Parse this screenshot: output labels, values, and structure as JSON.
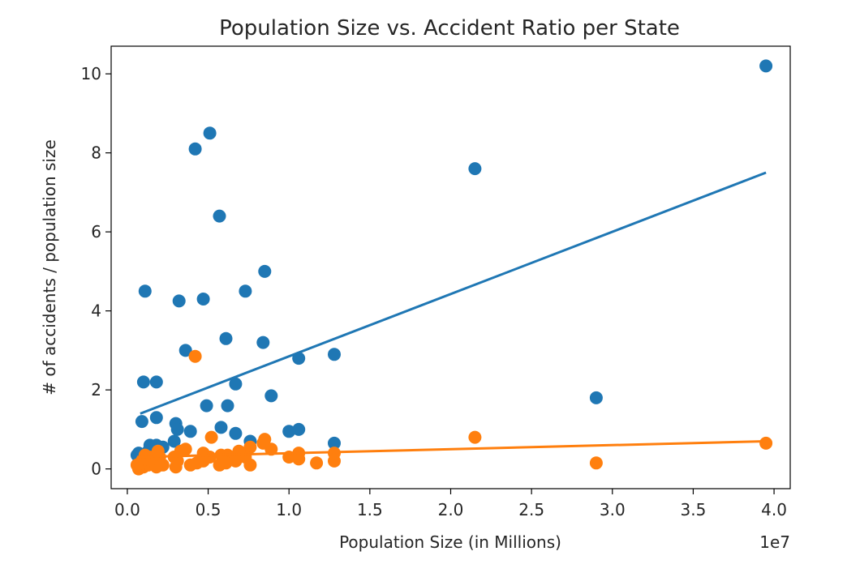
{
  "chart_data": {
    "type": "scatter",
    "title": "Population Size vs. Accident Ratio per State",
    "xlabel": "Population Size (in Millions)",
    "ylabel": "# of accidents / population size",
    "x_offset_label": "1e7",
    "xlim": [
      -1000000,
      41000000
    ],
    "ylim": [
      -0.5,
      10.7
    ],
    "x_ticks": [
      0,
      5000000,
      10000000,
      15000000,
      20000000,
      25000000,
      30000000,
      35000000,
      40000000
    ],
    "x_tick_labels": [
      "0.0",
      "0.5",
      "1.0",
      "1.5",
      "2.0",
      "2.5",
      "3.0",
      "3.5",
      "4.0"
    ],
    "y_ticks": [
      0,
      2,
      4,
      6,
      8,
      10
    ],
    "y_tick_labels": [
      "0",
      "2",
      "4",
      "6",
      "8",
      "10"
    ],
    "grid": false,
    "series": [
      {
        "color": "#1f77b4",
        "points": [
          [
            39500000,
            10.2
          ],
          [
            21500000,
            7.6
          ],
          [
            29000000,
            1.8
          ],
          [
            12800000,
            2.9
          ],
          [
            10600000,
            2.8
          ],
          [
            10600000,
            1.0
          ],
          [
            10000000,
            0.95
          ],
          [
            12800000,
            0.65
          ],
          [
            8900000,
            1.85
          ],
          [
            8400000,
            3.2
          ],
          [
            8500000,
            5.0
          ],
          [
            7300000,
            4.5
          ],
          [
            6700000,
            2.15
          ],
          [
            6100000,
            3.3
          ],
          [
            6200000,
            1.6
          ],
          [
            6700000,
            0.9
          ],
          [
            5800000,
            1.05
          ],
          [
            7600000,
            0.7
          ],
          [
            5700000,
            6.4
          ],
          [
            5100000,
            8.5
          ],
          [
            4200000,
            8.1
          ],
          [
            4700000,
            4.3
          ],
          [
            4900000,
            1.6
          ],
          [
            3600000,
            3.0
          ],
          [
            3200000,
            4.25
          ],
          [
            3900000,
            0.95
          ],
          [
            3000000,
            1.15
          ],
          [
            3100000,
            1.0
          ],
          [
            2900000,
            0.7
          ],
          [
            1100000,
            4.5
          ],
          [
            1400000,
            0.6
          ],
          [
            1000000,
            2.2
          ],
          [
            1800000,
            2.2
          ],
          [
            1800000,
            1.3
          ],
          [
            1800000,
            0.6
          ],
          [
            2200000,
            0.55
          ],
          [
            900000,
            1.2
          ],
          [
            700000,
            0.4
          ],
          [
            600000,
            0.35
          ],
          [
            1300000,
            0.45
          ]
        ],
        "fit": {
          "x": [
            800000,
            39500000
          ],
          "y": [
            1.4,
            7.5
          ]
        }
      },
      {
        "color": "#ff7f0e",
        "points": [
          [
            39500000,
            0.65
          ],
          [
            21500000,
            0.8
          ],
          [
            29000000,
            0.15
          ],
          [
            4200000,
            2.85
          ],
          [
            5200000,
            0.8
          ],
          [
            12800000,
            0.2
          ],
          [
            12800000,
            0.4
          ],
          [
            11700000,
            0.15
          ],
          [
            10600000,
            0.4
          ],
          [
            10600000,
            0.25
          ],
          [
            10000000,
            0.3
          ],
          [
            8900000,
            0.5
          ],
          [
            8500000,
            0.75
          ],
          [
            8400000,
            0.65
          ],
          [
            7600000,
            0.55
          ],
          [
            7600000,
            0.1
          ],
          [
            7300000,
            0.3
          ],
          [
            6900000,
            0.45
          ],
          [
            6700000,
            0.2
          ],
          [
            6200000,
            0.35
          ],
          [
            6100000,
            0.15
          ],
          [
            5800000,
            0.35
          ],
          [
            5700000,
            0.1
          ],
          [
            5100000,
            0.3
          ],
          [
            4700000,
            0.4
          ],
          [
            4700000,
            0.2
          ],
          [
            4300000,
            0.15
          ],
          [
            3900000,
            0.1
          ],
          [
            3600000,
            0.5
          ],
          [
            3300000,
            0.45
          ],
          [
            3100000,
            0.2
          ],
          [
            3000000,
            0.05
          ],
          [
            2900000,
            0.3
          ],
          [
            2200000,
            0.1
          ],
          [
            2000000,
            0.3
          ],
          [
            1900000,
            0.45
          ],
          [
            1800000,
            0.05
          ],
          [
            1400000,
            0.3
          ],
          [
            1300000,
            0.1
          ],
          [
            1100000,
            0.35
          ],
          [
            1000000,
            0.05
          ],
          [
            900000,
            0.2
          ],
          [
            700000,
            0.0
          ],
          [
            600000,
            0.1
          ]
        ],
        "fit": {
          "x": [
            600000,
            39500000
          ],
          "y": [
            0.3,
            0.7
          ]
        }
      }
    ]
  }
}
